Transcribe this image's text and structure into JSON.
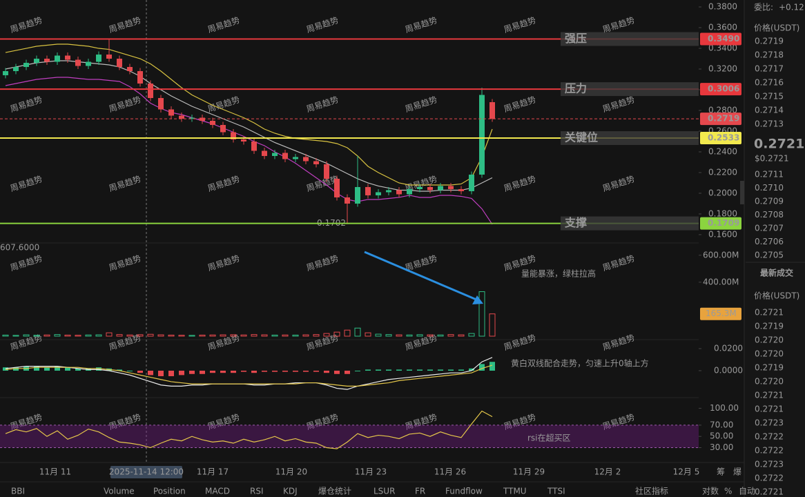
{
  "chart_data": {
    "type": "candlestick",
    "open": [
      0.314,
      0.318,
      0.322,
      0.326,
      0.33,
      0.327,
      0.333,
      0.329,
      0.323,
      0.327,
      0.334,
      0.33,
      0.322,
      0.318,
      0.306,
      0.292,
      0.281,
      0.275,
      0.272,
      0.273,
      0.27,
      0.266,
      0.259,
      0.252,
      0.25,
      0.241,
      0.236,
      0.239,
      0.233,
      0.235,
      0.231,
      0.228,
      0.214,
      0.196,
      0.19,
      0.206,
      0.198,
      0.201,
      0.203,
      0.199,
      0.204,
      0.206,
      0.203,
      0.207,
      0.204,
      0.202,
      0.218,
      0.288
    ],
    "high": [
      0.321,
      0.325,
      0.329,
      0.333,
      0.333,
      0.336,
      0.336,
      0.332,
      0.33,
      0.337,
      0.349,
      0.333,
      0.325,
      0.321,
      0.309,
      0.295,
      0.284,
      0.278,
      0.276,
      0.276,
      0.273,
      0.269,
      0.262,
      0.255,
      0.253,
      0.244,
      0.242,
      0.242,
      0.238,
      0.238,
      0.234,
      0.231,
      0.217,
      0.199,
      0.236,
      0.209,
      0.204,
      0.206,
      0.206,
      0.207,
      0.209,
      0.209,
      0.21,
      0.21,
      0.207,
      0.221,
      0.302,
      0.291
    ],
    "low": [
      0.311,
      0.315,
      0.319,
      0.323,
      0.324,
      0.324,
      0.326,
      0.32,
      0.32,
      0.324,
      0.327,
      0.319,
      0.315,
      0.303,
      0.289,
      0.278,
      0.272,
      0.269,
      0.269,
      0.267,
      0.263,
      0.256,
      0.249,
      0.247,
      0.238,
      0.233,
      0.233,
      0.23,
      0.23,
      0.228,
      0.225,
      0.211,
      0.193,
      0.1702,
      0.187,
      0.195,
      0.195,
      0.198,
      0.196,
      0.196,
      0.201,
      0.2,
      0.2,
      0.201,
      0.199,
      0.199,
      0.215,
      0.269
    ],
    "close": [
      0.318,
      0.322,
      0.326,
      0.33,
      0.327,
      0.333,
      0.329,
      0.323,
      0.327,
      0.334,
      0.33,
      0.322,
      0.318,
      0.306,
      0.292,
      0.281,
      0.275,
      0.272,
      0.273,
      0.27,
      0.266,
      0.259,
      0.252,
      0.25,
      0.241,
      0.236,
      0.239,
      0.233,
      0.235,
      0.231,
      0.228,
      0.214,
      0.196,
      0.19,
      0.206,
      0.198,
      0.201,
      0.203,
      0.199,
      0.204,
      0.206,
      0.203,
      0.207,
      0.204,
      0.202,
      0.218,
      0.295,
      0.2719
    ],
    "bb_upper": [
      0.336,
      0.338,
      0.34,
      0.342,
      0.343,
      0.344,
      0.344,
      0.343,
      0.342,
      0.34,
      0.339,
      0.336,
      0.333,
      0.33,
      0.325,
      0.318,
      0.31,
      0.302,
      0.295,
      0.29,
      0.285,
      0.281,
      0.277,
      0.273,
      0.268,
      0.262,
      0.258,
      0.255,
      0.253,
      0.252,
      0.251,
      0.25,
      0.248,
      0.244,
      0.236,
      0.226,
      0.22,
      0.215,
      0.21,
      0.208,
      0.208,
      0.208,
      0.208,
      0.208,
      0.209,
      0.215,
      0.235,
      0.262
    ],
    "bb_mid": [
      0.32,
      0.322,
      0.324,
      0.326,
      0.327,
      0.328,
      0.328,
      0.327,
      0.326,
      0.325,
      0.324,
      0.322,
      0.318,
      0.313,
      0.306,
      0.3,
      0.294,
      0.289,
      0.284,
      0.28,
      0.276,
      0.272,
      0.268,
      0.264,
      0.259,
      0.254,
      0.249,
      0.245,
      0.241,
      0.237,
      0.233,
      0.229,
      0.224,
      0.219,
      0.214,
      0.21,
      0.207,
      0.205,
      0.203,
      0.203,
      0.202,
      0.202,
      0.203,
      0.203,
      0.203,
      0.205,
      0.21,
      0.215
    ],
    "bb_lower": [
      0.304,
      0.306,
      0.308,
      0.31,
      0.311,
      0.312,
      0.312,
      0.311,
      0.31,
      0.31,
      0.309,
      0.308,
      0.303,
      0.296,
      0.287,
      0.282,
      0.278,
      0.276,
      0.273,
      0.27,
      0.267,
      0.263,
      0.259,
      0.255,
      0.25,
      0.246,
      0.24,
      0.235,
      0.229,
      0.222,
      0.215,
      0.208,
      0.2,
      0.194,
      0.192,
      0.194,
      0.194,
      0.195,
      0.196,
      0.198,
      0.196,
      0.196,
      0.198,
      0.198,
      0.197,
      0.195,
      0.185,
      0.17
    ],
    "bb_colors": [
      "#d9c341",
      "#bdbdbd",
      "#c03fc0"
    ],
    "up_color": "#2ebd85",
    "down_color": "#e5484d",
    "ylim": [
      0.1533,
      0.3867
    ],
    "yticks": [
      {
        "value": 0.38,
        "label": "0.3800"
      },
      {
        "value": 0.36,
        "label": "0.3600"
      },
      {
        "value": 0.34,
        "label": "0.3400"
      },
      {
        "value": 0.32,
        "label": "0.3200"
      },
      {
        "value": 0.3,
        "label": "0.3000"
      },
      {
        "value": 0.28,
        "label": "0.2800"
      },
      {
        "value": 0.26,
        "label": "0.2600"
      },
      {
        "value": 0.24,
        "label": "0.2400"
      },
      {
        "value": 0.22,
        "label": "0.2200"
      },
      {
        "value": 0.2,
        "label": "0.2000"
      },
      {
        "value": 0.18,
        "label": "0.1800"
      },
      {
        "value": 0.16,
        "label": "0.1600"
      }
    ],
    "levels": [
      {
        "label": "强压",
        "value": 0.349,
        "value_label": "0.3490",
        "color": "#e8383d",
        "text_color": "#ffffff"
      },
      {
        "label": "压力",
        "value": 0.3006,
        "value_label": "0.3006",
        "color": "#e8383d",
        "text_color": "#ffffff"
      },
      {
        "label": "关键位",
        "value": 0.2533,
        "value_label": "0.2533",
        "color": "#f2e94e",
        "text_color": "#000000"
      },
      {
        "label": "支撑",
        "value": 0.1709,
        "value_label": "0.1709",
        "color": "#8bd43f",
        "text_color": "#ffffff"
      }
    ],
    "last_price": {
      "value": 0.2719,
      "label": "0.2719",
      "color": "#e5484d"
    },
    "low_annotation": {
      "value": 0.1702,
      "label": "0.1702"
    }
  },
  "volume_chart": {
    "type": "bar",
    "corner_label": "607.6000",
    "values": [
      8,
      6,
      10,
      7,
      9,
      12,
      8,
      7,
      9,
      10,
      25,
      12,
      9,
      11,
      14,
      10,
      8,
      7,
      6,
      8,
      9,
      10,
      11,
      9,
      12,
      10,
      8,
      9,
      8,
      10,
      12,
      20,
      30,
      45,
      60,
      25,
      15,
      12,
      10,
      9,
      11,
      10,
      9,
      12,
      10,
      20,
      330,
      165.3
    ],
    "ylim": [
      0,
      650
    ],
    "yticks": [
      {
        "value": 600,
        "label": "600.00M"
      },
      {
        "value": 400,
        "label": "400.00M"
      }
    ],
    "current": {
      "value": 165.3,
      "label": "165.3M",
      "color": "#e8a33d"
    },
    "annotation": "量能暴涨，绿柱拉高"
  },
  "macd_chart": {
    "type": "bar",
    "histogram": [
      0.003,
      0.003,
      0.004,
      0.004,
      0.003,
      0.004,
      0.003,
      0.002,
      0.002,
      0.003,
      0.002,
      0.001,
      0.0,
      -0.002,
      -0.004,
      -0.005,
      -0.005,
      -0.004,
      -0.003,
      -0.003,
      -0.002,
      -0.002,
      -0.002,
      -0.001,
      -0.002,
      -0.001,
      -0.001,
      -0.001,
      -0.001,
      -0.001,
      -0.001,
      -0.002,
      -0.003,
      -0.003,
      0.0,
      0.001,
      0.001,
      0.001,
      0.001,
      0.001,
      0.001,
      0.001,
      0.001,
      0.001,
      0.001,
      0.002,
      0.006,
      0.008
    ],
    "dif": [
      0.002,
      0.003,
      0.004,
      0.004,
      0.004,
      0.004,
      0.003,
      0.002,
      0.001,
      0.001,
      0.0,
      -0.002,
      -0.004,
      -0.007,
      -0.01,
      -0.013,
      -0.014,
      -0.014,
      -0.013,
      -0.013,
      -0.012,
      -0.012,
      -0.012,
      -0.012,
      -0.013,
      -0.013,
      -0.012,
      -0.012,
      -0.011,
      -0.011,
      -0.011,
      -0.013,
      -0.016,
      -0.017,
      -0.014,
      -0.012,
      -0.01,
      -0.008,
      -0.007,
      -0.006,
      -0.005,
      -0.004,
      -0.003,
      -0.002,
      -0.002,
      0.0,
      0.008,
      0.012
    ],
    "dea": [
      0.001,
      0.002,
      0.002,
      0.003,
      0.003,
      0.003,
      0.003,
      0.003,
      0.002,
      0.002,
      0.001,
      0.0,
      -0.002,
      -0.004,
      -0.006,
      -0.008,
      -0.01,
      -0.011,
      -0.012,
      -0.012,
      -0.012,
      -0.012,
      -0.012,
      -0.012,
      -0.012,
      -0.012,
      -0.012,
      -0.012,
      -0.012,
      -0.011,
      -0.011,
      -0.012,
      -0.013,
      -0.014,
      -0.014,
      -0.013,
      -0.012,
      -0.011,
      -0.009,
      -0.008,
      -0.007,
      -0.006,
      -0.005,
      -0.004,
      -0.003,
      -0.002,
      0.002,
      0.005
    ],
    "line_colors": [
      "#eeeeee",
      "#e6c84a"
    ],
    "ylim": [
      -0.0238,
      0.0263
    ],
    "yticks": [
      {
        "value": 0.02,
        "label": "0.0200"
      },
      {
        "value": 0,
        "label": "0.0000"
      }
    ],
    "annotation": "黄白双线配合走势，匀速上升0轴上方"
  },
  "rsi_chart": {
    "type": "line",
    "values": [
      55,
      62,
      58,
      64,
      50,
      60,
      45,
      52,
      63,
      58,
      48,
      40,
      38,
      35,
      30,
      38,
      45,
      42,
      50,
      44,
      40,
      42,
      38,
      45,
      40,
      44,
      50,
      42,
      46,
      40,
      38,
      30,
      28,
      40,
      55,
      48,
      52,
      50,
      46,
      54,
      56,
      50,
      58,
      52,
      48,
      72,
      95,
      85
    ],
    "color": "#e6c84a",
    "ylim": [
      0,
      114
    ],
    "yticks": [
      {
        "value": 100,
        "label": "100.00"
      },
      {
        "value": 70,
        "label": "70.00"
      },
      {
        "value": 50,
        "label": "50.00"
      },
      {
        "value": 30,
        "label": "30.00"
      }
    ],
    "band": [
      30,
      70
    ],
    "annotation": "rsi在超买区"
  },
  "x_axis": {
    "labels": [
      "11月 11",
      "2025-11-14 12:00",
      "11月 17",
      "11月 20",
      "11月 23",
      "11月 26",
      "11月 29",
      "12月 2",
      "12月 5"
    ],
    "tools": [
      "筹",
      "爆"
    ]
  },
  "watermark": "周易趋势",
  "tabs": [
    {
      "label": "BBI",
      "active": false
    },
    {
      "label": "Volume",
      "active": true
    },
    {
      "label": "Position",
      "active": false
    },
    {
      "label": "MACD",
      "active": true
    },
    {
      "label": "RSI",
      "active": true
    },
    {
      "label": "KDJ",
      "active": false
    },
    {
      "label": "爆仓统计",
      "active": false
    },
    {
      "label": "LSUR",
      "active": false
    },
    {
      "label": "FR",
      "active": false
    },
    {
      "label": "Fundflow",
      "active": false
    },
    {
      "label": "TTMU",
      "active": false
    },
    {
      "label": "TTSI",
      "active": false
    },
    {
      "label": "社区指标",
      "active": false
    },
    {
      "label": "对数",
      "active": false
    },
    {
      "label": "%",
      "active": false
    },
    {
      "label": "自动",
      "active": false
    }
  ],
  "order_book": {
    "ratio_label": "委比:",
    "ratio": "+0.12",
    "price_header": "价格(USDT)",
    "asks": [
      "0.2719",
      "0.2718",
      "0.2717",
      "0.2716",
      "0.2715",
      "0.2714",
      "0.2713"
    ],
    "last": "0.2721",
    "last_usd": "$0.2721",
    "bids": [
      "0.2711",
      "0.2710",
      "0.2709",
      "0.2708",
      "0.2707",
      "0.2706",
      "0.2705"
    ]
  },
  "trades": {
    "title": "最新成交",
    "price_header": "价格(USDT)",
    "rows": [
      {
        "price": "0.2721",
        "side": "buy"
      },
      {
        "price": "0.2719",
        "side": "sell"
      },
      {
        "price": "0.2720",
        "side": "sell"
      },
      {
        "price": "0.2720",
        "side": "buy"
      },
      {
        "price": "0.2719",
        "side": "sell"
      },
      {
        "price": "0.2720",
        "side": "sell"
      },
      {
        "price": "0.2721",
        "side": "buy"
      },
      {
        "price": "0.2721",
        "side": "sell"
      },
      {
        "price": "0.2723",
        "side": "buy"
      },
      {
        "price": "0.2722",
        "side": "buy"
      },
      {
        "price": "0.2722",
        "side": "sell"
      },
      {
        "price": "0.2723",
        "side": "buy"
      },
      {
        "price": "0.2722",
        "side": "buy"
      },
      {
        "price": "0.2721",
        "side": "buy"
      }
    ]
  }
}
